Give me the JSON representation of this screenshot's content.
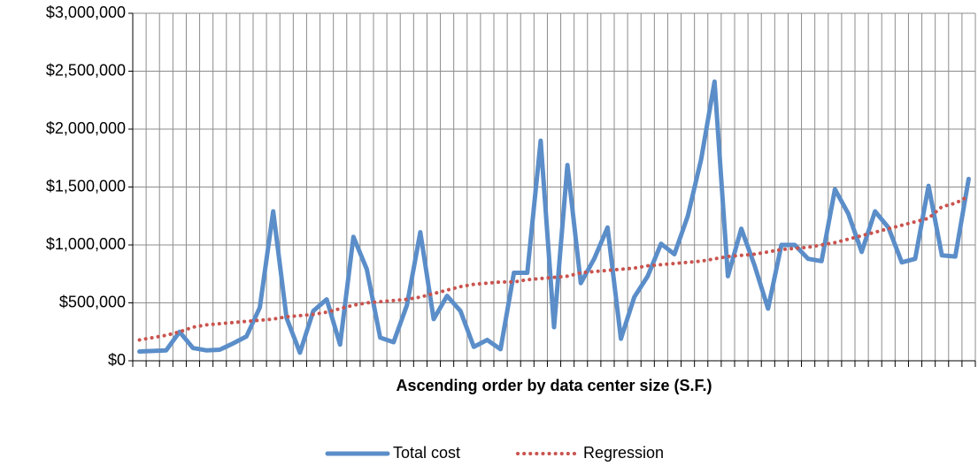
{
  "chart_data": {
    "type": "line",
    "xlabel": "Ascending order by data center size (S.F.)",
    "categories": [
      null,
      null,
      null,
      null,
      null,
      null,
      null,
      null,
      null,
      null,
      null,
      null,
      null,
      null,
      null,
      null,
      null,
      null,
      null,
      null,
      null,
      null,
      null,
      null,
      null,
      null,
      null,
      null,
      null,
      null,
      null,
      null,
      null,
      null,
      null,
      null,
      null,
      null,
      null,
      null,
      null,
      null,
      null,
      null,
      null,
      null,
      null,
      null,
      null,
      null,
      null,
      null,
      null,
      null,
      null,
      null,
      null,
      null,
      null,
      null,
      null,
      null,
      null
    ],
    "series": [
      {
        "name": "Total cost",
        "color": "#5b8ec9",
        "style": "solid",
        "values": [
          80000,
          85000,
          90000,
          250000,
          110000,
          90000,
          95000,
          150000,
          210000,
          460000,
          1290000,
          370000,
          70000,
          430000,
          530000,
          140000,
          1070000,
          790000,
          200000,
          160000,
          480000,
          1110000,
          360000,
          560000,
          430000,
          120000,
          180000,
          100000,
          760000,
          760000,
          1900000,
          290000,
          1690000,
          670000,
          880000,
          1150000,
          190000,
          550000,
          730000,
          1010000,
          920000,
          1250000,
          1740000,
          2410000,
          730000,
          1140000,
          820000,
          450000,
          1000000,
          1000000,
          880000,
          860000,
          1480000,
          1270000,
          940000,
          1290000,
          1150000,
          850000,
          880000,
          1510000,
          910000,
          900000,
          1570000
        ]
      },
      {
        "name": "Regression",
        "color": "#c9544f",
        "style": "dotted",
        "values": [
          180000,
          200000,
          220000,
          250000,
          290000,
          310000,
          320000,
          330000,
          340000,
          350000,
          360000,
          380000,
          390000,
          400000,
          420000,
          450000,
          480000,
          500000,
          510000,
          520000,
          530000,
          550000,
          580000,
          610000,
          640000,
          660000,
          670000,
          680000,
          680000,
          700000,
          710000,
          720000,
          730000,
          760000,
          770000,
          780000,
          790000,
          800000,
          820000,
          830000,
          840000,
          850000,
          860000,
          880000,
          900000,
          910000,
          920000,
          940000,
          960000,
          970000,
          980000,
          1000000,
          1020000,
          1050000,
          1080000,
          1110000,
          1140000,
          1170000,
          1200000,
          1230000,
          1330000,
          1360000,
          1420000
        ]
      }
    ],
    "ylim": [
      0,
      3000000
    ],
    "yticks": [
      {
        "value": 0,
        "label": "$0"
      },
      {
        "value": 500000,
        "label": "$500,000"
      },
      {
        "value": 1000000,
        "label": "$1,000,000"
      },
      {
        "value": 1500000,
        "label": "$1,500,000"
      },
      {
        "value": 2000000,
        "label": "$2,000,000"
      },
      {
        "value": 2500000,
        "label": "$2,500,000"
      },
      {
        "value": 3000000,
        "label": "$3,000,000"
      }
    ],
    "grid": true,
    "legend": "bottom"
  }
}
